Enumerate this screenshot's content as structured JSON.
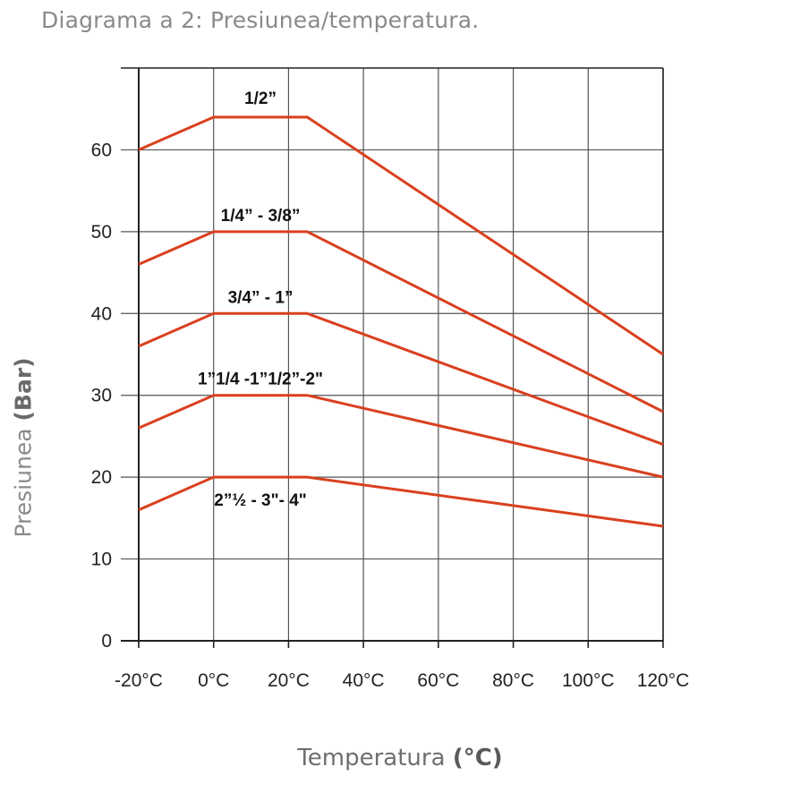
{
  "title": "Diagrama a 2: Presiunea/temperatura.",
  "x_caption": "Temperatura",
  "x_caption_unit": "(°C)",
  "y_caption": "Presiunea",
  "y_caption_unit": "(Bar)",
  "colors": {
    "series": "#d9401f",
    "grid": "#555555",
    "axis": "#222222"
  },
  "chart_data": {
    "type": "line",
    "xlabel": "Temperatura (°C)",
    "ylabel": "Presiunea (Bar)",
    "xlim": [
      -20,
      120
    ],
    "ylim": [
      0,
      70
    ],
    "grid": true,
    "x_ticks": [
      -20,
      0,
      20,
      40,
      60,
      80,
      100,
      120
    ],
    "x_tick_labels": [
      "-20°C",
      "0°C",
      "20°C",
      "40°C",
      "60°C",
      "80°C",
      "100°C",
      "120°C"
    ],
    "y_ticks": [
      0,
      10,
      20,
      30,
      40,
      50,
      60
    ],
    "y_tick_labels": [
      "0",
      "10",
      "20",
      "30",
      "40",
      "50",
      "60"
    ],
    "series": [
      {
        "name": "1/2”",
        "x": [
          -20,
          0,
          25,
          120
        ],
        "y": [
          60,
          64,
          64,
          35
        ]
      },
      {
        "name": "1/4” - 3/8”",
        "x": [
          -20,
          0,
          25,
          120
        ],
        "y": [
          46,
          50,
          50,
          28
        ]
      },
      {
        "name": "3/4” - 1”",
        "x": [
          -20,
          0,
          25,
          120
        ],
        "y": [
          36,
          40,
          40,
          24
        ]
      },
      {
        "name": "1”1/4 -1”1/2”-2\"",
        "x": [
          -20,
          0,
          25,
          120
        ],
        "y": [
          26,
          30,
          30,
          20
        ]
      },
      {
        "name": "2”½ - 3\"- 4\"",
        "x": [
          -20,
          0,
          25,
          120
        ],
        "y": [
          16,
          20,
          20,
          14
        ]
      }
    ]
  }
}
